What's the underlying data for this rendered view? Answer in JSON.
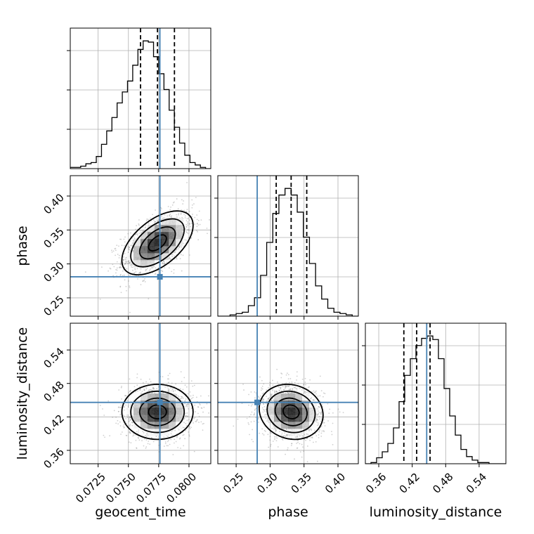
{
  "chart_data": {
    "type": "corner",
    "parameters": [
      "geocent_time",
      "phase",
      "luminosity_distance"
    ],
    "axis_labels": {
      "geocent_time": "geocent_time",
      "phase": "phase",
      "luminosity_distance": "luminosity_distance"
    },
    "ranges": {
      "geocent_time": [
        0.0702,
        0.0818
      ],
      "phase": [
        0.223,
        0.43
      ],
      "luminosity_distance": [
        0.336,
        0.588
      ]
    },
    "ticks": {
      "geocent_time": [
        "0.0725",
        "0.0750",
        "0.0775",
        "0.0800"
      ],
      "phase": [
        "0.25",
        "0.30",
        "0.35",
        "0.40"
      ],
      "luminosity_distance": [
        "0.36",
        "0.42",
        "0.48",
        "0.54"
      ]
    },
    "truths": {
      "geocent_time": 0.0776,
      "phase": 0.281,
      "luminosity_distance": 0.446
    },
    "truth_color": "#4682b4",
    "grid": true,
    "quantiles": [
      0.16,
      0.5,
      0.84
    ],
    "histograms": {
      "geocent_time": {
        "edges_min": 0.0702,
        "edges_max": 0.0818,
        "counts": [
          1,
          1,
          2,
          4,
          5,
          10,
          20,
          31,
          42,
          54,
          63,
          72,
          85,
          98,
          105,
          104,
          92,
          78,
          65,
          48,
          34,
          21,
          11,
          5,
          3,
          1,
          0
        ],
        "quantile_values": [
          0.076,
          0.0774,
          0.0788
        ]
      },
      "phase": {
        "edges_min": 0.223,
        "edges_max": 0.43,
        "counts": [
          0,
          0,
          1,
          2,
          3,
          8,
          14,
          31,
          56,
          78,
          92,
          97,
          92,
          79,
          60,
          40,
          23,
          13,
          6,
          3,
          2,
          1,
          0
        ],
        "quantile_values": [
          0.309,
          0.331,
          0.354
        ]
      },
      "luminosity_distance": {
        "edges_min": 0.336,
        "edges_max": 0.588,
        "counts": [
          0,
          1,
          5,
          10,
          17,
          30,
          52,
          74,
          88,
          99,
          105,
          107,
          104,
          88,
          63,
          40,
          24,
          12,
          6,
          3,
          1,
          1,
          0,
          0,
          0
        ],
        "quantile_values": [
          0.405,
          0.428,
          0.452
        ]
      }
    },
    "pairs": [
      {
        "x": "geocent_time",
        "y": "phase",
        "center": [
          0.0774,
          0.331
        ],
        "sigma": [
          0.0014,
          0.0224
        ],
        "rho": 0.55
      },
      {
        "x": "geocent_time",
        "y": "luminosity_distance",
        "center": [
          0.0774,
          0.429
        ],
        "sigma": [
          0.0014,
          0.0235
        ],
        "rho": 0.0
      },
      {
        "x": "phase",
        "y": "luminosity_distance",
        "center": [
          0.331,
          0.429
        ],
        "sigma": [
          0.0224,
          0.0235
        ],
        "rho": -0.12
      }
    ]
  }
}
